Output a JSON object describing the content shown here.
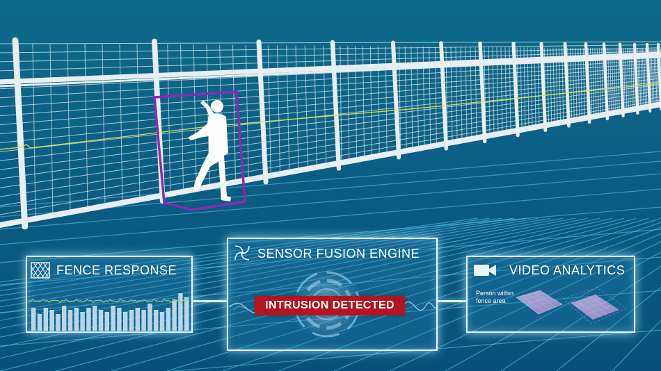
{
  "panels": {
    "fence_response": {
      "title": "FENCE RESPONSE",
      "icon": "mesh-grid-icon"
    },
    "sensor_fusion": {
      "title": "SENSOR FUSION ENGINE",
      "icon": "fusion-swirl-icon",
      "alert": "INTRUSION DETECTED"
    },
    "video_analytics": {
      "title": "VIDEO ANALYTICS",
      "icon": "video-camera-icon",
      "caption": "Person within fence area"
    }
  },
  "colors": {
    "background": "#0c5f80",
    "grid_line": "#5fc8f0",
    "fence": "#e8eef2",
    "detection_box": "#8a2bb0",
    "alert_red": "#b3151e",
    "signal_line": "#d6e84a",
    "heat_tile": "#f0a8e8"
  }
}
